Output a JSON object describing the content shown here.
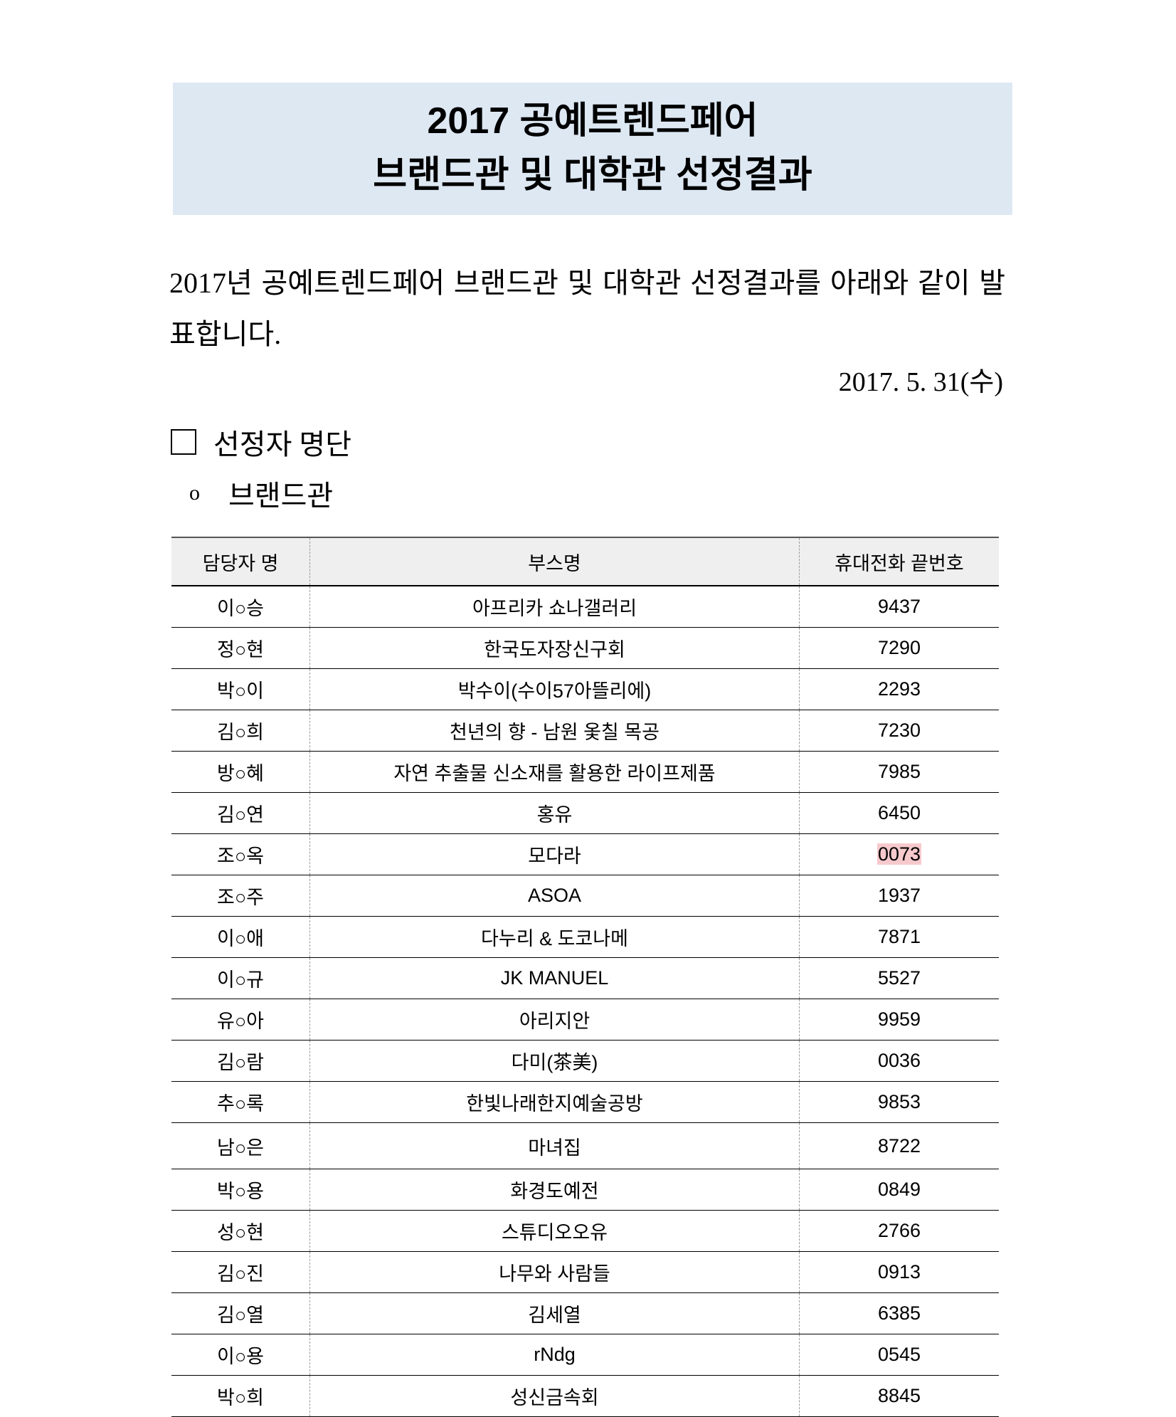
{
  "title": {
    "line1": "2017 공예트렌드페어",
    "line2": "브랜드관 및 대학관 선정결과"
  },
  "intro": "2017년 공예트렌드페어 브랜드관 및 대학관 선정결과를 아래와 같이 발표합니다.",
  "date": "2017. 5. 31(수)",
  "section_heading": "선정자 명단",
  "subsection_heading": "브랜드관",
  "subsection_bullet": "ㅇ",
  "highlight_color": "#f6c9cd",
  "table": {
    "headers": [
      "담당자 명",
      "부스명",
      "휴대전화 끝번호"
    ],
    "rows": [
      [
        "이○승",
        "아프리카 쇼나갤러리",
        "9437"
      ],
      [
        "정○현",
        "한국도자장신구회",
        "7290"
      ],
      [
        "박○이",
        "박수이(수이57아뜰리에)",
        "2293"
      ],
      [
        "김○희",
        "천년의 향 - 남원 옻칠 목공",
        "7230"
      ],
      [
        "방○혜",
        "자연 추출물 신소재를 활용한 라이프제품",
        "7985"
      ],
      [
        "김○연",
        "홍유",
        "6450"
      ],
      [
        "조○옥",
        "모다라",
        "0073"
      ],
      [
        "조○주",
        "ASOA",
        "1937"
      ],
      [
        "이○애",
        "다누리 & 도코나메",
        "7871"
      ],
      [
        "이○규",
        "JK MANUEL",
        "5527"
      ],
      [
        "유○아",
        "아리지안",
        "9959"
      ],
      [
        "김○람",
        "다미(茶美)",
        "0036"
      ],
      [
        "추○록",
        "한빛나래한지예술공방",
        "9853"
      ],
      [
        "남○은",
        "마녀집",
        "8722"
      ],
      [
        "박○용",
        "화경도예전",
        "0849"
      ],
      [
        "성○현",
        "스튜디오오유",
        "2766"
      ],
      [
        "김○진",
        "나무와 사람들",
        "0913"
      ],
      [
        "김○열",
        "김세열",
        "6385"
      ],
      [
        "이○용",
        "rNdg",
        "0545"
      ],
      [
        "박○희",
        "성신금속회",
        "8845"
      ]
    ],
    "highlighted_cell": {
      "row": 6,
      "col": 2
    }
  }
}
